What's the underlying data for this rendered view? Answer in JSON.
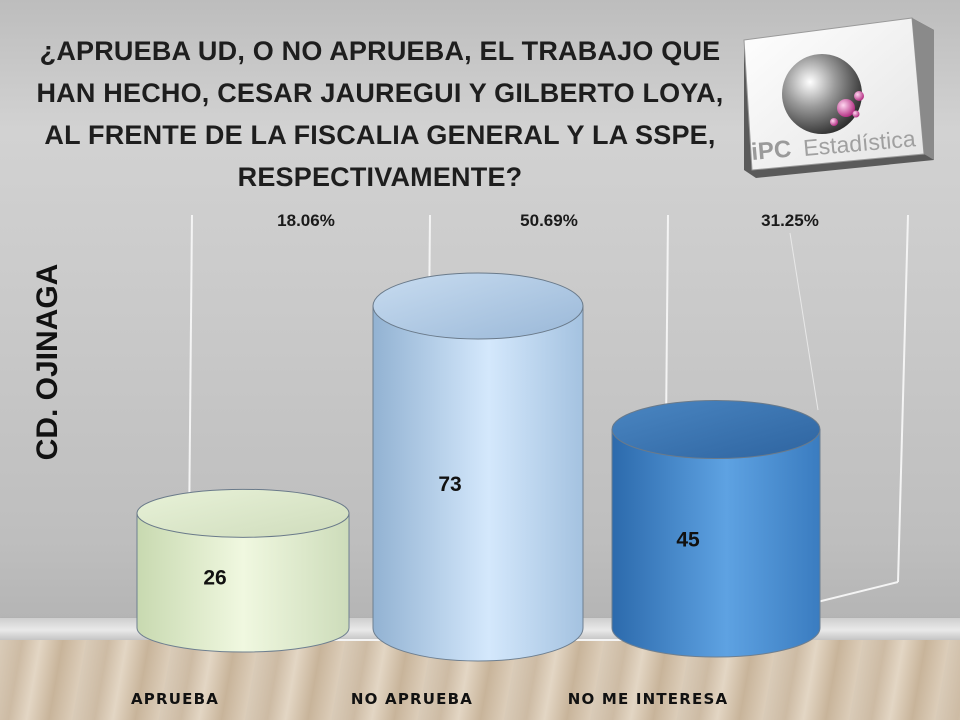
{
  "title": "¿APRUEBA UD, O NO APRUEBA, EL TRABAJO QUE HAN HECHO, CESAR JAUREGUI Y GILBERTO LOYA, AL FRENTE DE LA FISCALIA GENERAL Y LA SSPE, RESPECTIVAMENTE?",
  "side_label": "CD. OJINAGA",
  "logo": {
    "text_left": "iPC",
    "text_right": "Estadística"
  },
  "colors": {
    "aprueba": "#e6f2d2",
    "no_aprueba": "#b8d2ee",
    "no_me_interesa": "#4a8ccc"
  },
  "chart_data": {
    "type": "bar",
    "style": "3d-cylinder",
    "categories": [
      "APRUEBA",
      "NO APRUEBA",
      "NO ME INTERESA"
    ],
    "values": [
      26,
      73,
      45
    ],
    "percent_labels": [
      "18.06%",
      "50.69%",
      "31.25%"
    ],
    "title": "",
    "xlabel": "",
    "ylabel": "",
    "ylim": [
      0,
      100
    ],
    "grid": false,
    "legend": "none"
  }
}
